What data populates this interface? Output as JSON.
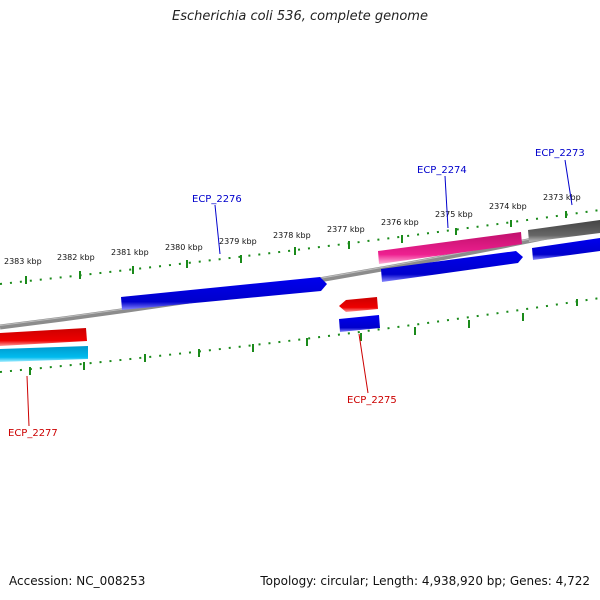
{
  "title": "Escherichia coli 536, complete genome",
  "footer": {
    "accession": "Accession: NC_008253",
    "stats": "Topology: circular; Length: 4,938,920 bp; Genes: 4,722"
  },
  "ticks": {
    "labels": [
      "2373 kbp",
      "2374 kbp",
      "2375 kbp",
      "2376 kbp",
      "2377 kbp",
      "2378 kbp",
      "2379 kbp",
      "2380 kbp",
      "2381 kbp",
      "2382 kbp",
      "2383 kbp"
    ],
    "color": "#1a8a1a"
  },
  "gene_labels": {
    "ECP_2273": "ECP_2273",
    "ECP_2274": "ECP_2274",
    "ECP_2275": "ECP_2275",
    "ECP_2276": "ECP_2276",
    "ECP_2277": "ECP_2277"
  },
  "colors": {
    "backbone": "#8c8c8c",
    "forward_gene": "#0000dd",
    "reverse_gene": "#ee0000",
    "pink_feature": "#ee2090",
    "cyan_feature": "#00bbee",
    "gray_feature": "#666666",
    "forward_label": "#0000cc",
    "reverse_label": "#cc0000"
  }
}
